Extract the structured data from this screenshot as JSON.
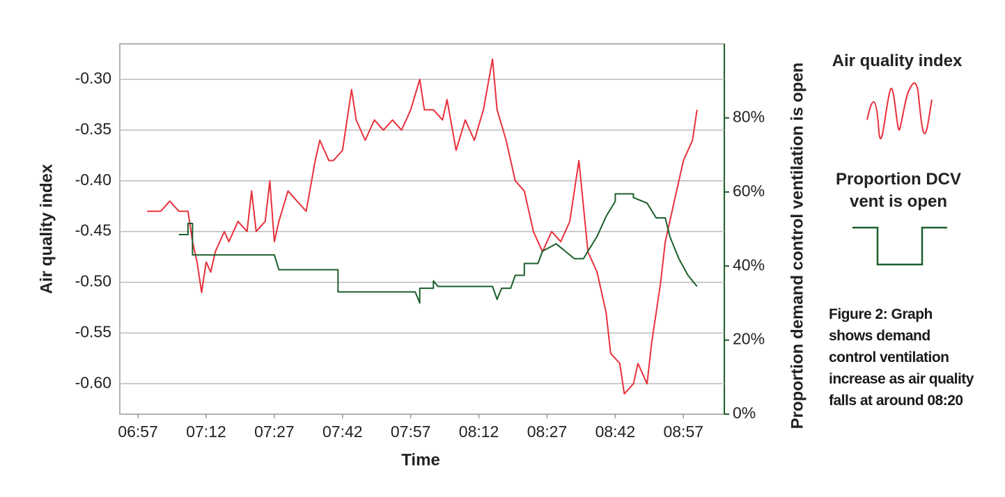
{
  "chart_data": {
    "type": "line",
    "xlabel": "Time",
    "ylabel": "Air quality index",
    "y2label": "Proportion demand control ventilation is open",
    "annotation": "Figure 2: Graph shows demand control ventilation increase as air quality falls at around 08:20",
    "xlim": [
      "06:53",
      "09:06"
    ],
    "xticks": [
      "06:57",
      "07:12",
      "07:27",
      "07:42",
      "07:57",
      "08:12",
      "08:27",
      "08:42",
      "08:57"
    ],
    "ylim": [
      -0.63,
      -0.265
    ],
    "yticks": [
      {
        "value": -0.6,
        "label": "-0.60"
      },
      {
        "value": -0.55,
        "label": "-0.55"
      },
      {
        "value": -0.5,
        "label": "-0.50"
      },
      {
        "value": -0.45,
        "label": "-0.45"
      },
      {
        "value": -0.4,
        "label": "-0.40"
      },
      {
        "value": -0.35,
        "label": "-0.35"
      },
      {
        "value": -0.3,
        "label": "-0.30"
      }
    ],
    "y2lim": [
      0,
      100
    ],
    "y2ticks": [
      {
        "value": 0,
        "label": "0%"
      },
      {
        "value": 20,
        "label": "20%"
      },
      {
        "value": 40,
        "label": "40%"
      },
      {
        "value": 60,
        "label": "60%"
      },
      {
        "value": 80,
        "label": "80%"
      }
    ],
    "grid": true,
    "series": [
      {
        "name": "Air quality index",
        "color": "#e8303a",
        "x": [
          "06:59",
          "07:02",
          "07:04",
          "07:06",
          "07:08",
          "07:09",
          "07:10",
          "07:11",
          "07:12",
          "07:13",
          "07:14",
          "07:16",
          "07:17",
          "07:19",
          "07:21",
          "07:22",
          "07:23",
          "07:25",
          "07:26",
          "07:27",
          "07:28",
          "07:30",
          "07:32",
          "07:34",
          "07:36",
          "07:37",
          "07:39",
          "07:40",
          "07:42",
          "07:44",
          "07:45",
          "07:47",
          "07:49",
          "07:51",
          "07:53",
          "07:55",
          "07:57",
          "07:59",
          "08:00",
          "08:02",
          "08:04",
          "08:05",
          "08:07",
          "08:09",
          "08:11",
          "08:13",
          "08:15",
          "08:16",
          "08:18",
          "08:20",
          "08:22",
          "08:24",
          "08:26",
          "08:28",
          "08:30",
          "08:32",
          "08:34",
          "08:36",
          "08:38",
          "08:40",
          "08:41",
          "08:43",
          "08:44",
          "08:46",
          "08:47",
          "08:49",
          "08:50",
          "08:52",
          "08:53",
          "08:55",
          "08:57",
          "08:59",
          "09:00"
        ],
        "values": [
          -0.43,
          -0.43,
          -0.42,
          -0.43,
          -0.43,
          -0.46,
          -0.48,
          -0.51,
          -0.48,
          -0.49,
          -0.47,
          -0.45,
          -0.46,
          -0.44,
          -0.45,
          -0.41,
          -0.45,
          -0.44,
          -0.4,
          -0.46,
          -0.44,
          -0.41,
          -0.42,
          -0.43,
          -0.38,
          -0.36,
          -0.38,
          -0.38,
          -0.37,
          -0.31,
          -0.34,
          -0.36,
          -0.34,
          -0.35,
          -0.34,
          -0.35,
          -0.33,
          -0.3,
          -0.33,
          -0.33,
          -0.34,
          -0.32,
          -0.37,
          -0.34,
          -0.36,
          -0.33,
          -0.28,
          -0.33,
          -0.36,
          -0.4,
          -0.41,
          -0.45,
          -0.47,
          -0.45,
          -0.46,
          -0.44,
          -0.38,
          -0.47,
          -0.49,
          -0.53,
          -0.57,
          -0.58,
          -0.61,
          -0.6,
          -0.58,
          -0.6,
          -0.56,
          -0.5,
          -0.46,
          -0.42,
          -0.38,
          -0.36,
          -0.33
        ]
      },
      {
        "name": "Proportion DCV vent is open",
        "color": "#1a5e2a",
        "axis": "y2",
        "x": [
          "07:06",
          "07:08",
          "07:08",
          "07:09",
          "07:09",
          "07:27",
          "07:28",
          "07:41",
          "07:41",
          "07:58",
          "07:59",
          "07:59",
          "08:02",
          "08:02",
          "08:03",
          "08:15",
          "08:16",
          "08:17",
          "08:19",
          "08:20",
          "08:22",
          "08:22",
          "08:25",
          "08:26",
          "08:29",
          "08:31",
          "08:33",
          "08:35",
          "08:36",
          "08:38",
          "08:40",
          "08:42",
          "08:42",
          "08:46",
          "08:46",
          "08:49",
          "08:51",
          "08:53",
          "08:54",
          "08:56",
          "08:58",
          "09:00"
        ],
        "values": [
          48.5,
          48.5,
          51.5,
          51.5,
          43,
          43,
          39,
          39,
          33,
          33,
          30,
          34,
          34,
          36,
          34.5,
          34.5,
          31,
          34,
          34,
          37.5,
          37.5,
          40.7,
          40.7,
          44,
          46,
          44,
          42,
          42,
          44,
          48,
          53.4,
          57.5,
          59.5,
          59.5,
          58.5,
          57,
          53,
          53,
          48,
          42,
          37.5,
          34.5
        ]
      }
    ]
  }
}
